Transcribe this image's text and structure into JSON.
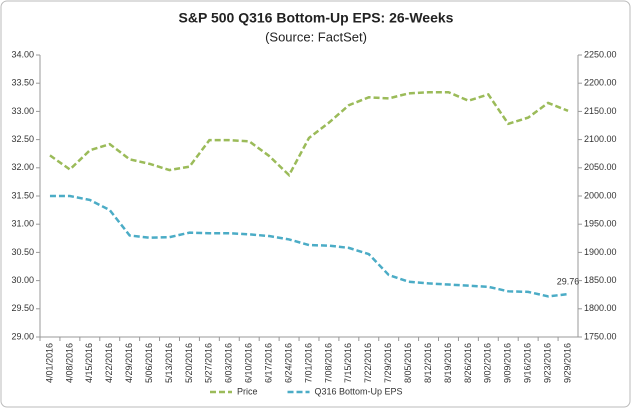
{
  "chart_data": {
    "type": "line",
    "title": "S&P 500 Q316 Bottom-Up EPS: 26-Weeks",
    "subtitle": "(Source: FactSet)",
    "categories": [
      "4/01/2016",
      "4/08/2016",
      "4/15/2016",
      "4/22/2016",
      "4/29/2016",
      "5/06/2016",
      "5/13/2016",
      "5/20/2016",
      "5/27/2016",
      "6/03/2016",
      "6/10/2016",
      "6/17/2016",
      "6/24/2016",
      "7/01/2016",
      "7/08/2016",
      "7/15/2016",
      "7/22/2016",
      "7/29/2016",
      "8/05/2016",
      "8/12/2016",
      "8/19/2016",
      "8/26/2016",
      "9/02/2016",
      "9/09/2016",
      "9/16/2016",
      "9/23/2016",
      "9/29/2016"
    ],
    "series": [
      {
        "name": "Price",
        "color": "#9bbb59",
        "axis": "y2",
        "values": [
          2072,
          2047,
          2081,
          2092,
          2065,
          2057,
          2046,
          2052,
          2099,
          2099,
          2097,
          2071,
          2037,
          2103,
          2130,
          2161,
          2175,
          2173,
          2182,
          2184,
          2184,
          2169,
          2180,
          2128,
          2139,
          2165,
          2151
        ]
      },
      {
        "name": "Q316 Bottom-Up EPS",
        "color": "#4bacc6",
        "axis": "y",
        "values": [
          31.5,
          31.5,
          31.43,
          31.25,
          30.8,
          30.76,
          30.77,
          30.85,
          30.84,
          30.84,
          30.82,
          30.79,
          30.73,
          30.63,
          30.62,
          30.58,
          30.47,
          30.1,
          29.98,
          29.95,
          29.93,
          29.91,
          29.89,
          29.81,
          29.8,
          29.72,
          29.76
        ]
      }
    ],
    "ylim": [
      29,
      34
    ],
    "yticks": [
      {
        "value": 29,
        "label": "29.00"
      },
      {
        "value": 29.5,
        "label": "29.50"
      },
      {
        "value": 30,
        "label": "30.00"
      },
      {
        "value": 30.5,
        "label": "30.50"
      },
      {
        "value": 31,
        "label": "31.00"
      },
      {
        "value": 31.5,
        "label": "31.50"
      },
      {
        "value": 32,
        "label": "32.00"
      },
      {
        "value": 32.5,
        "label": "32.50"
      },
      {
        "value": 33,
        "label": "33.00"
      },
      {
        "value": 33.5,
        "label": "33.50"
      },
      {
        "value": 34,
        "label": "34.00"
      }
    ],
    "y2lim": [
      1750,
      2250
    ],
    "y2ticks": [
      {
        "value": 1750,
        "label": "1750.00"
      },
      {
        "value": 1800,
        "label": "1800.00"
      },
      {
        "value": 1850,
        "label": "1850.00"
      },
      {
        "value": 1900,
        "label": "1900.00"
      },
      {
        "value": 1950,
        "label": "1950.00"
      },
      {
        "value": 2000,
        "label": "2000.00"
      },
      {
        "value": 2050,
        "label": "2050.00"
      },
      {
        "value": 2100,
        "label": "2100.00"
      },
      {
        "value": 2150,
        "label": "2150.00"
      },
      {
        "value": 2200,
        "label": "2200.00"
      },
      {
        "value": 2250,
        "label": "2250.00"
      }
    ],
    "grid": false,
    "legend": "bottom"
  }
}
